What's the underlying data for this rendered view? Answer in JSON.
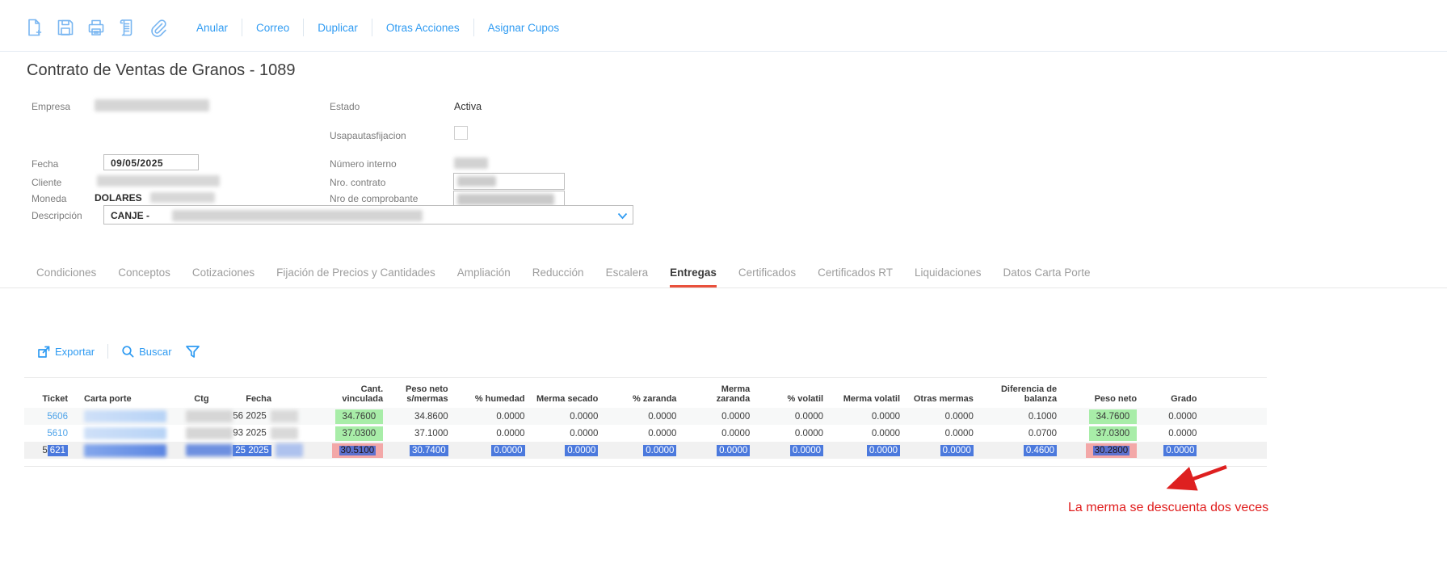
{
  "colors": {
    "link_blue": "#2f9bf2",
    "icon_blue": "#79b6f1",
    "ticket_link": "#4ea3e9",
    "tab_underline_red": "#e9503c",
    "highlight_green": "#a8eda8",
    "highlight_red": "#f3a8a8",
    "selection_blue": "#4b79dd",
    "annotation_red": "#e01d1d"
  },
  "toolbar": {
    "icons": [
      "new-document",
      "save",
      "print",
      "report",
      "attachment"
    ],
    "actions": [
      "Anular",
      "Correo",
      "Duplicar",
      "Otras Acciones",
      "Asignar Cupos"
    ]
  },
  "page": {
    "title": "Contrato de Ventas de Granos - 1089"
  },
  "form": {
    "empresa_label": "Empresa",
    "estado_label": "Estado",
    "estado_value": "Activa",
    "usapautas_label": "Usapautasfijacion",
    "usapautas_checked": false,
    "fecha_label": "Fecha",
    "fecha_value": "09/05/2025",
    "numero_interno_label": "Número interno",
    "cliente_label": "Cliente",
    "nro_contrato_label": "Nro. contrato",
    "moneda_label": "Moneda",
    "moneda_value": "DOLARES",
    "nro_comprobante_label": "Nro de comprobante",
    "descripcion_label": "Descripción",
    "descripcion_value": "CANJE -"
  },
  "tabs": {
    "items": [
      "Condiciones",
      "Conceptos",
      "Cotizaciones",
      "Fijación de Precios y Cantidades",
      "Ampliación",
      "Reducción",
      "Escalera",
      "Entregas",
      "Certificados",
      "Certificados RT",
      "Liquidaciones",
      "Datos Carta Porte"
    ],
    "active": "Entregas"
  },
  "table_toolbar": {
    "export_label": "Exportar",
    "search_label": "Buscar"
  },
  "table": {
    "columns": [
      "Ticket",
      "Carta porte",
      "Ctg",
      "Fecha",
      "Cant.\nvinculada",
      "Peso neto\ns/mermas",
      "% humedad",
      "Merma secado",
      "% zaranda",
      "Merma\nzaranda",
      "% volatil",
      "Merma volatil",
      "Otras mermas",
      "Diferencia de\nbalanza",
      "Peso neto",
      "Grado"
    ],
    "rows": [
      {
        "ticket": "5606",
        "ctg_suffix": "56",
        "fecha": "2025",
        "selected": false,
        "values": [
          "34.7600",
          "34.8600",
          "0.0000",
          "0.0000",
          "0.0000",
          "0.0000",
          "0.0000",
          "0.0000",
          "0.0000",
          "0.1000",
          "34.7600",
          "0.0000"
        ],
        "highlights": {
          "0": "green",
          "10": "green"
        }
      },
      {
        "ticket": "5610",
        "ctg_suffix": "93",
        "fecha": "2025",
        "selected": false,
        "values": [
          "37.0300",
          "37.1000",
          "0.0000",
          "0.0000",
          "0.0000",
          "0.0000",
          "0.0000",
          "0.0000",
          "0.0000",
          "0.0700",
          "37.0300",
          "0.0000"
        ],
        "highlights": {
          "0": "green",
          "10": "green"
        }
      },
      {
        "ticket": "5621",
        "ctg_suffix": "25",
        "fecha": "2025",
        "selected": true,
        "values": [
          "30.5100",
          "30.7400",
          "0.0000",
          "0.0000",
          "0.0000",
          "0.0000",
          "0.0000",
          "0.0000",
          "0.0000",
          "0.4600",
          "30.2800",
          "0.0000"
        ],
        "highlights": {
          "0": "red",
          "10": "red"
        }
      }
    ]
  },
  "annotation": {
    "text": "La merma se descuenta dos veces"
  }
}
